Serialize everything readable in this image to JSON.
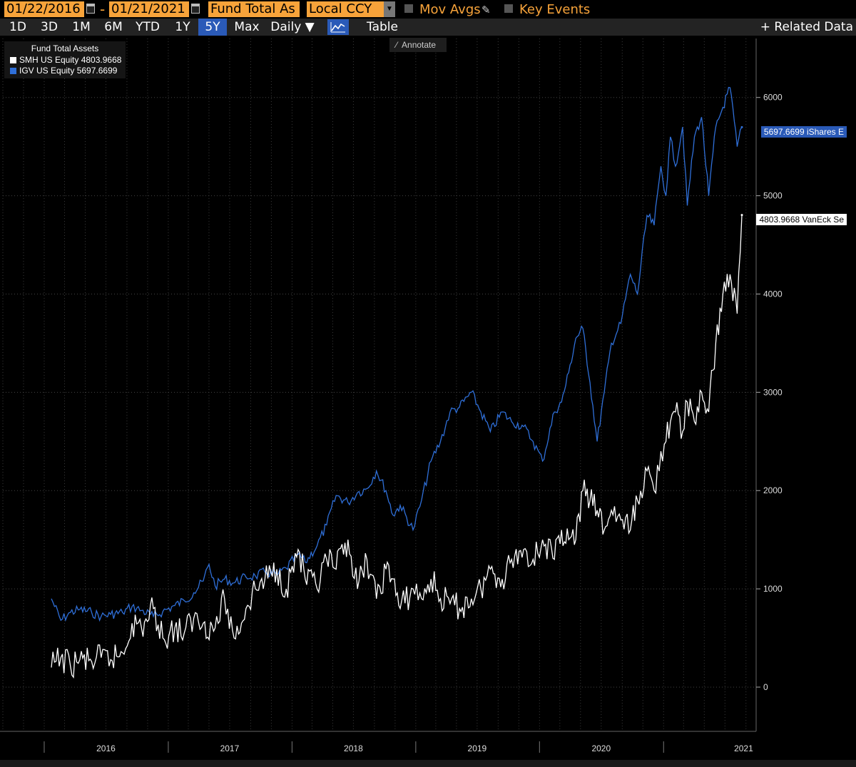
{
  "toolbar": {
    "start_date": "01/22/2016",
    "end_date": "01/21/2021",
    "separator": "-",
    "field": "Fund Total As",
    "currency": "Local CCY",
    "mov_avgs": "Mov Avgs",
    "key_events": "Key Events"
  },
  "tabs": {
    "1d": "1D",
    "3d": "3D",
    "1m": "1M",
    "6m": "6M",
    "ytd": "YTD",
    "1y": "1Y",
    "5y": "5Y",
    "max": "Max",
    "daily": "Daily ▼",
    "table": "Table",
    "related": "+ Related Data"
  },
  "annotate": "Annotate",
  "legend": {
    "title": "Fund Total Assets",
    "smh": "SMH US Equity 4803.9668",
    "igv": "IGV US Equity 5697.6699"
  },
  "tags": {
    "igv": "5697.6699 iShares E",
    "smh": "4803.9668 VanEck Se"
  },
  "colors": {
    "igv": "#2f6fd8",
    "smh": "#ffffff",
    "field_bg": "#f7a33a",
    "active_tab": "#2a5ab8"
  },
  "chart_data": {
    "type": "line",
    "title": "Fund Total Assets",
    "x_tick_labels": [
      "2016",
      "2017",
      "2018",
      "2019",
      "2020",
      "2021"
    ],
    "ylim": [
      -450,
      6600
    ],
    "y_ticks": [
      0,
      1000,
      2000,
      3000,
      4000,
      5000,
      6000
    ],
    "grid": true,
    "legend_position": "top-left",
    "series": [
      {
        "name": "IGV US Equity",
        "color": "#2f6fd8",
        "last": 5697.6699,
        "points": [
          [
            "2016-01-22",
            900
          ],
          [
            "2016-02-19",
            680
          ],
          [
            "2016-03-18",
            760
          ],
          [
            "2016-04-15",
            790
          ],
          [
            "2016-05-20",
            760
          ],
          [
            "2016-06-17",
            720
          ],
          [
            "2016-07-15",
            740
          ],
          [
            "2016-08-19",
            760
          ],
          [
            "2016-09-16",
            820
          ],
          [
            "2016-10-14",
            780
          ],
          [
            "2016-11-18",
            720
          ],
          [
            "2016-12-16",
            770
          ],
          [
            "2017-01-20",
            830
          ],
          [
            "2017-02-17",
            880
          ],
          [
            "2017-03-17",
            960
          ],
          [
            "2017-04-14",
            1080
          ],
          [
            "2017-05-01",
            1250
          ],
          [
            "2017-05-19",
            1030
          ],
          [
            "2017-06-16",
            1100
          ],
          [
            "2017-07-14",
            1060
          ],
          [
            "2017-08-18",
            1120
          ],
          [
            "2017-09-15",
            1130
          ],
          [
            "2017-10-13",
            1170
          ],
          [
            "2017-11-17",
            1140
          ],
          [
            "2017-12-15",
            1210
          ],
          [
            "2018-01-19",
            1350
          ],
          [
            "2018-02-09",
            1270
          ],
          [
            "2018-03-16",
            1440
          ],
          [
            "2018-04-13",
            1650
          ],
          [
            "2018-05-11",
            1950
          ],
          [
            "2018-06-15",
            1880
          ],
          [
            "2018-07-13",
            1980
          ],
          [
            "2018-08-10",
            2020
          ],
          [
            "2018-09-07",
            2200
          ],
          [
            "2018-10-05",
            2000
          ],
          [
            "2018-10-26",
            1750
          ],
          [
            "2018-11-16",
            1850
          ],
          [
            "2018-12-24",
            1600
          ],
          [
            "2019-01-18",
            1900
          ],
          [
            "2019-02-15",
            2300
          ],
          [
            "2019-03-15",
            2500
          ],
          [
            "2019-04-12",
            2800
          ],
          [
            "2019-05-10",
            2850
          ],
          [
            "2019-06-14",
            3000
          ],
          [
            "2019-07-12",
            2800
          ],
          [
            "2019-08-09",
            2600
          ],
          [
            "2019-09-13",
            2800
          ],
          [
            "2019-10-11",
            2700
          ],
          [
            "2019-11-15",
            2650
          ],
          [
            "2019-12-13",
            2500
          ],
          [
            "2020-01-10",
            2300
          ],
          [
            "2020-02-14",
            2800
          ],
          [
            "2020-03-06",
            2900
          ],
          [
            "2020-03-27",
            3200
          ],
          [
            "2020-04-17",
            3550
          ],
          [
            "2020-05-08",
            3650
          ],
          [
            "2020-05-29",
            3100
          ],
          [
            "2020-06-19",
            2500
          ],
          [
            "2020-07-10",
            3000
          ],
          [
            "2020-07-31",
            3500
          ],
          [
            "2020-08-28",
            3700
          ],
          [
            "2020-09-25",
            4200
          ],
          [
            "2020-10-16",
            4000
          ],
          [
            "2020-11-13",
            4800
          ],
          [
            "2020-12-04",
            4700
          ],
          [
            "2020-12-24",
            5300
          ],
          [
            "2021-01-08",
            5000
          ],
          [
            "2021-01-21",
            5600
          ],
          [
            "2021-02-05",
            5300
          ],
          [
            "2021-02-26",
            5700
          ],
          [
            "2021-03-12",
            4900
          ],
          [
            "2021-04-02",
            5600
          ],
          [
            "2021-04-23",
            5800
          ],
          [
            "2021-05-14",
            5000
          ],
          [
            "2021-06-04",
            5700
          ],
          [
            "2021-06-25",
            5900
          ],
          [
            "2021-07-16",
            6100
          ],
          [
            "2021-08-06",
            5500
          ],
          [
            "2021-08-20",
            5697.6699
          ]
        ]
      },
      {
        "name": "SMH US Equity",
        "color": "#ffffff",
        "last": 4803.9668,
        "points": [
          [
            "2016-01-22",
            200
          ],
          [
            "2016-02-19",
            300
          ],
          [
            "2016-03-18",
            220
          ],
          [
            "2016-04-15",
            280
          ],
          [
            "2016-05-20",
            260
          ],
          [
            "2016-06-17",
            300
          ],
          [
            "2016-07-15",
            280
          ],
          [
            "2016-08-19",
            350
          ],
          [
            "2016-09-16",
            650
          ],
          [
            "2016-10-14",
            600
          ],
          [
            "2016-11-18",
            800
          ],
          [
            "2016-12-16",
            500
          ],
          [
            "2017-01-20",
            600
          ],
          [
            "2017-02-17",
            550
          ],
          [
            "2017-03-17",
            700
          ],
          [
            "2017-04-14",
            650
          ],
          [
            "2017-05-19",
            600
          ],
          [
            "2017-06-16",
            900
          ],
          [
            "2017-07-14",
            500
          ],
          [
            "2017-08-18",
            800
          ],
          [
            "2017-09-15",
            1000
          ],
          [
            "2017-10-13",
            1100
          ],
          [
            "2017-11-17",
            1200
          ],
          [
            "2017-12-15",
            1000
          ],
          [
            "2018-01-19",
            1400
          ],
          [
            "2018-02-09",
            1100
          ],
          [
            "2018-03-16",
            1000
          ],
          [
            "2018-04-13",
            1300
          ],
          [
            "2018-05-11",
            1200
          ],
          [
            "2018-06-15",
            1500
          ],
          [
            "2018-07-13",
            1000
          ],
          [
            "2018-08-10",
            1300
          ],
          [
            "2018-09-07",
            900
          ],
          [
            "2018-10-05",
            1200
          ],
          [
            "2018-10-26",
            1100
          ],
          [
            "2018-11-16",
            800
          ],
          [
            "2018-12-24",
            1000
          ],
          [
            "2019-01-18",
            900
          ],
          [
            "2019-02-15",
            1100
          ],
          [
            "2019-03-15",
            900
          ],
          [
            "2019-04-12",
            850
          ],
          [
            "2019-05-10",
            800
          ],
          [
            "2019-06-14",
            900
          ],
          [
            "2019-07-12",
            1000
          ],
          [
            "2019-08-09",
            1200
          ],
          [
            "2019-09-13",
            1100
          ],
          [
            "2019-10-11",
            1300
          ],
          [
            "2019-11-15",
            1400
          ],
          [
            "2019-12-13",
            1300
          ],
          [
            "2020-01-10",
            1500
          ],
          [
            "2020-02-14",
            1300
          ],
          [
            "2020-03-06",
            1600
          ],
          [
            "2020-03-27",
            1500
          ],
          [
            "2020-04-17",
            1500
          ],
          [
            "2020-05-08",
            2000
          ],
          [
            "2020-05-29",
            1900
          ],
          [
            "2020-06-19",
            1800
          ],
          [
            "2020-07-10",
            1600
          ],
          [
            "2020-07-31",
            1800
          ],
          [
            "2020-08-28",
            1700
          ],
          [
            "2020-09-25",
            1600
          ],
          [
            "2020-10-16",
            1900
          ],
          [
            "2020-11-13",
            2200
          ],
          [
            "2020-12-04",
            2000
          ],
          [
            "2020-12-24",
            2400
          ],
          [
            "2021-01-08",
            2500
          ],
          [
            "2021-01-21",
            2700
          ],
          [
            "2021-02-05",
            2800
          ],
          [
            "2021-02-26",
            2600
          ],
          [
            "2021-03-12",
            2900
          ],
          [
            "2021-04-02",
            2700
          ],
          [
            "2021-04-23",
            3000
          ],
          [
            "2021-05-14",
            2800
          ],
          [
            "2021-06-04",
            3500
          ],
          [
            "2021-06-25",
            4000
          ],
          [
            "2021-07-16",
            4200
          ],
          [
            "2021-08-06",
            3800
          ],
          [
            "2021-08-20",
            4803.9668
          ]
        ]
      }
    ]
  }
}
